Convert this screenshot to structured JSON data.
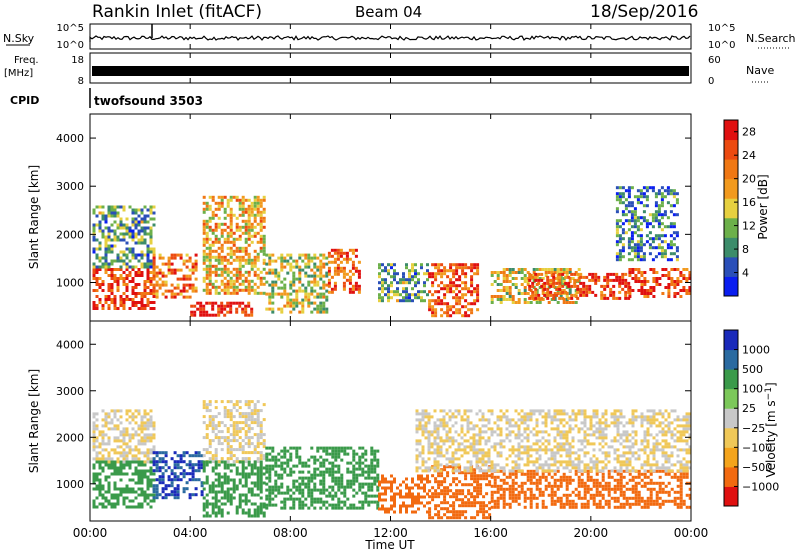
{
  "header": {
    "station": "Rankin Inlet (fitACF)",
    "beam": "Beam 04",
    "date": "18/Sep/2016"
  },
  "noise_panel": {
    "left_label": "N.Sky",
    "right_label": "N.Search",
    "ytick_top": "10^5",
    "ytick_bottom": "10^0",
    "right_tick_top": "10^5",
    "right_tick_bottom": "10^0"
  },
  "freq_panel": {
    "left_label_1": "Freq.",
    "left_label_2": "[MHz]",
    "right_label": "Nave",
    "ytick_top": "18",
    "ytick_bottom": "8",
    "right_tick_top": "60",
    "right_tick_bottom": "0"
  },
  "cpid_panel": {
    "label": "CPID",
    "value": "twofsound 3503"
  },
  "x_axis": {
    "label": "Time UT",
    "ticks": [
      "00:00",
      "04:00",
      "08:00",
      "12:00",
      "16:00",
      "20:00",
      "00:00"
    ]
  },
  "colors": {
    "power_scale": [
      "#0a1ef0",
      "#2a4fb8",
      "#3c8c6a",
      "#6cb04a",
      "#e6d040",
      "#f29a1e",
      "#f07814",
      "#ec4a10",
      "#e01010"
    ],
    "velocity_scale": [
      "#e01010",
      "#f26a10",
      "#f4a41c",
      "#f0c858",
      "#c8c8c8",
      "#7cc85a",
      "#3a9a4a",
      "#2a6aa0",
      "#1a2aba"
    ]
  },
  "chart_data": [
    {
      "type": "heatmap",
      "title": "Power",
      "ylabel": "Slant Range [km]",
      "xlabel": "",
      "x_range_hours": [
        0,
        24
      ],
      "ylim": [
        200,
        4500
      ],
      "yticks": [
        "1000",
        "2000",
        "3000",
        "4000"
      ],
      "colorbar": {
        "label": "Power [dB]",
        "ticks": [
          "4",
          "8",
          "12",
          "16",
          "20",
          "24",
          "28"
        ],
        "range": [
          0,
          30
        ]
      },
      "echo_regions": [
        {
          "t_start": 0.1,
          "t_end": 2.5,
          "r_min": 450,
          "r_max": 1300,
          "value": 26
        },
        {
          "t_start": 0.1,
          "t_end": 2.5,
          "r_min": 1300,
          "r_max": 2600,
          "value": 10
        },
        {
          "t_start": 2.5,
          "t_end": 4.2,
          "r_min": 700,
          "r_max": 1600,
          "value": 22
        },
        {
          "t_start": 4.0,
          "t_end": 6.5,
          "r_min": 300,
          "r_max": 600,
          "value": 28
        },
        {
          "t_start": 4.5,
          "t_end": 7.0,
          "r_min": 800,
          "r_max": 2800,
          "value": 18
        },
        {
          "t_start": 7.0,
          "t_end": 9.5,
          "r_min": 400,
          "r_max": 1600,
          "value": 14
        },
        {
          "t_start": 9.5,
          "t_end": 10.8,
          "r_min": 800,
          "r_max": 1700,
          "value": 24
        },
        {
          "t_start": 11.5,
          "t_end": 13.5,
          "r_min": 600,
          "r_max": 1400,
          "value": 10
        },
        {
          "t_start": 13.5,
          "t_end": 15.5,
          "r_min": 300,
          "r_max": 1400,
          "value": 24
        },
        {
          "t_start": 16.0,
          "t_end": 19.5,
          "r_min": 600,
          "r_max": 1300,
          "value": 16
        },
        {
          "t_start": 17.5,
          "t_end": 21.5,
          "r_min": 700,
          "r_max": 1200,
          "value": 26
        },
        {
          "t_start": 21.5,
          "t_end": 24.0,
          "r_min": 700,
          "r_max": 1300,
          "value": 26
        },
        {
          "t_start": 21.0,
          "t_end": 23.5,
          "r_min": 1500,
          "r_max": 3000,
          "value": 8
        }
      ]
    },
    {
      "type": "heatmap",
      "title": "Velocity",
      "ylabel": "Slant Range [km]",
      "xlabel": "Time UT",
      "x_range_hours": [
        0,
        24
      ],
      "ylim": [
        200,
        4500
      ],
      "yticks": [
        "1000",
        "2000",
        "3000",
        "4000"
      ],
      "colorbar": {
        "label": "Velocity [m s^-1]",
        "ticks": [
          "1000",
          "500",
          "100",
          "25",
          "−25",
          "−100",
          "−500",
          "−1000"
        ]
      },
      "echo_regions": [
        {
          "t_start": 0.1,
          "t_end": 2.5,
          "r_min": 1500,
          "r_max": 2600,
          "value": 0
        },
        {
          "t_start": 0.1,
          "t_end": 2.5,
          "r_min": 500,
          "r_max": 1500,
          "value": 300
        },
        {
          "t_start": 2.5,
          "t_end": 4.5,
          "r_min": 700,
          "r_max": 1700,
          "value": 1000
        },
        {
          "t_start": 4.5,
          "t_end": 7.0,
          "r_min": 1500,
          "r_max": 2800,
          "value": 0
        },
        {
          "t_start": 4.5,
          "t_end": 7.0,
          "r_min": 300,
          "r_max": 1500,
          "value": 400
        },
        {
          "t_start": 7.0,
          "t_end": 11.5,
          "r_min": 500,
          "r_max": 1800,
          "value": 200
        },
        {
          "t_start": 11.5,
          "t_end": 13.5,
          "r_min": 400,
          "r_max": 1200,
          "value": -200
        },
        {
          "t_start": 13.5,
          "t_end": 16.0,
          "r_min": 300,
          "r_max": 1400,
          "value": -150
        },
        {
          "t_start": 16.0,
          "t_end": 24.0,
          "r_min": 500,
          "r_max": 1300,
          "value": -300
        },
        {
          "t_start": 13.0,
          "t_end": 24.0,
          "r_min": 1300,
          "r_max": 2600,
          "value": 0
        }
      ]
    }
  ]
}
